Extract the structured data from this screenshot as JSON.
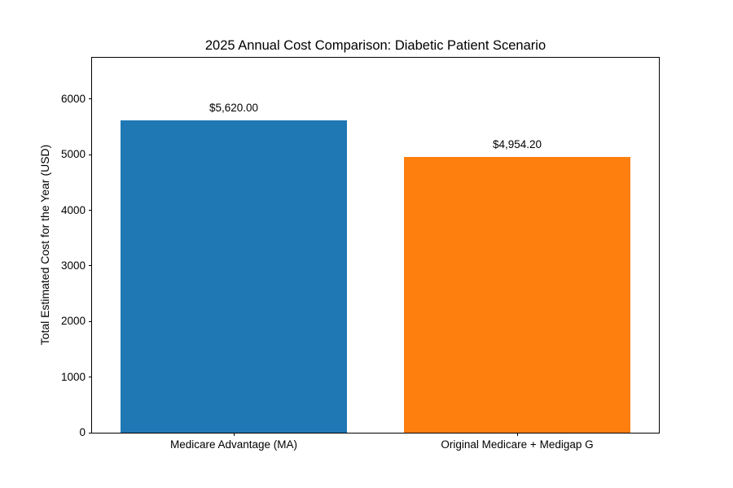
{
  "chart_data": {
    "type": "bar",
    "title": "2025 Annual Cost Comparison: Diabetic Patient Scenario",
    "xlabel": "",
    "ylabel": "Total Estimated Cost for the Year (USD)",
    "categories": [
      "Medicare Advantage (MA)",
      "Original Medicare + Medigap G"
    ],
    "values": [
      5620.0,
      4954.2
    ],
    "bar_labels": [
      "$5,620.00",
      "$4,954.20"
    ],
    "colors": [
      "#1f77b4",
      "#ff7f0e"
    ],
    "ylim": [
      0,
      6744
    ],
    "yticks": [
      0,
      1000,
      2000,
      3000,
      4000,
      5000,
      6000
    ],
    "grid": false,
    "legend": null,
    "bar_width_fraction": 0.8,
    "background_color": "#ffffff",
    "axis_color": "#000000",
    "text_color": "#000000"
  }
}
